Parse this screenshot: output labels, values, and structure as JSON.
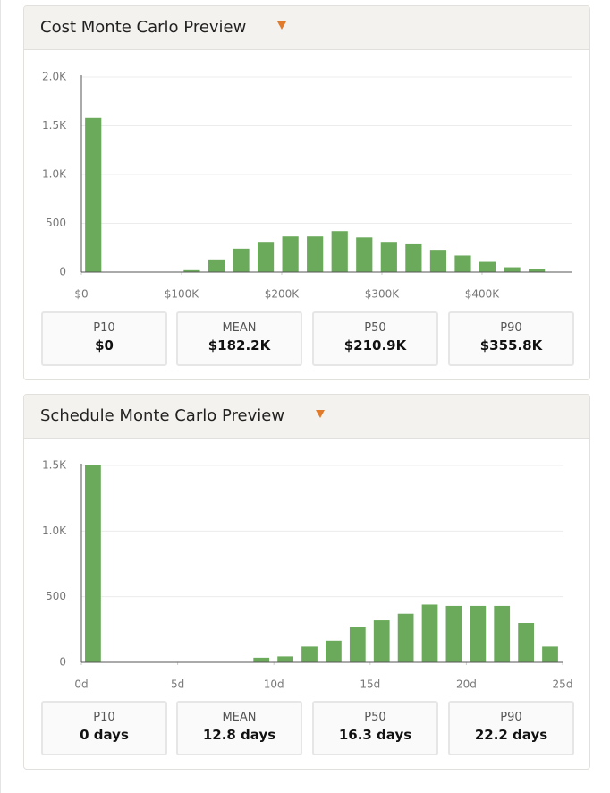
{
  "chart_data": [
    {
      "type": "histogram",
      "title": "Cost Monte Carlo Preview",
      "color": "#6aaa5a",
      "grid": true,
      "bins": [
        0,
        24600,
        49200,
        73800,
        98400,
        123000,
        147600,
        172200,
        196800,
        221400,
        246000,
        270600,
        295200,
        319800,
        344400,
        369000,
        393600,
        418200,
        442800,
        467400,
        492000
      ],
      "counts": [
        1580,
        0,
        0,
        0,
        20,
        130,
        240,
        310,
        365,
        365,
        420,
        355,
        310,
        285,
        228,
        170,
        105,
        50,
        35,
        0
      ],
      "xlim": [
        0,
        492000
      ],
      "xticks": [
        {
          "value": 0,
          "label": "$0"
        },
        {
          "value": 100000,
          "label": "$100K"
        },
        {
          "value": 200000,
          "label": "$200K"
        },
        {
          "value": 300000,
          "label": "$300K"
        },
        {
          "value": 400000,
          "label": "$400K"
        }
      ],
      "ylim": [
        0,
        2000
      ],
      "yticks": [
        0,
        500,
        {
          "value": 1000,
          "label": "1.0K"
        },
        {
          "value": 1500,
          "label": "1.5K"
        },
        {
          "value": 2000,
          "label": "2.0K"
        }
      ],
      "stats": [
        {
          "label": "P10",
          "value": "$0"
        },
        {
          "label": "MEAN",
          "value": "$182.2K"
        },
        {
          "label": "P50",
          "value": "$210.9K"
        },
        {
          "label": "P90",
          "value": "$355.8K"
        }
      ]
    },
    {
      "type": "histogram",
      "title": "Schedule Monte Carlo Preview",
      "color": "#6aaa5a",
      "grid": true,
      "bins": [
        0,
        1.25,
        2.5,
        3.75,
        5,
        6.25,
        7.5,
        8.75,
        10,
        11.25,
        12.5,
        13.75,
        15,
        16.25,
        17.5,
        18.75,
        20,
        21.25,
        22.5,
        23.75,
        25
      ],
      "counts": [
        1500,
        0,
        0,
        0,
        0,
        0,
        0,
        35,
        45,
        120,
        165,
        270,
        320,
        370,
        440,
        430,
        430,
        430,
        300,
        120
      ],
      "xlim": [
        0,
        25
      ],
      "xticks": [
        {
          "value": 0,
          "label": "0d"
        },
        {
          "value": 5,
          "label": "5d"
        },
        {
          "value": 10,
          "label": "10d"
        },
        {
          "value": 15,
          "label": "15d"
        },
        {
          "value": 20,
          "label": "20d"
        },
        {
          "value": 25,
          "label": "25d"
        }
      ],
      "ylim": [
        0,
        1500
      ],
      "yticks": [
        0,
        500,
        {
          "value": 1000,
          "label": "1.0K"
        },
        {
          "value": 1500,
          "label": "1.5K"
        }
      ],
      "stats": [
        {
          "label": "P10",
          "value": "0 days"
        },
        {
          "label": "MEAN",
          "value": "12.8 days"
        },
        {
          "label": "P50",
          "value": "16.3 days"
        },
        {
          "label": "P90",
          "value": "22.2 days"
        }
      ]
    }
  ]
}
